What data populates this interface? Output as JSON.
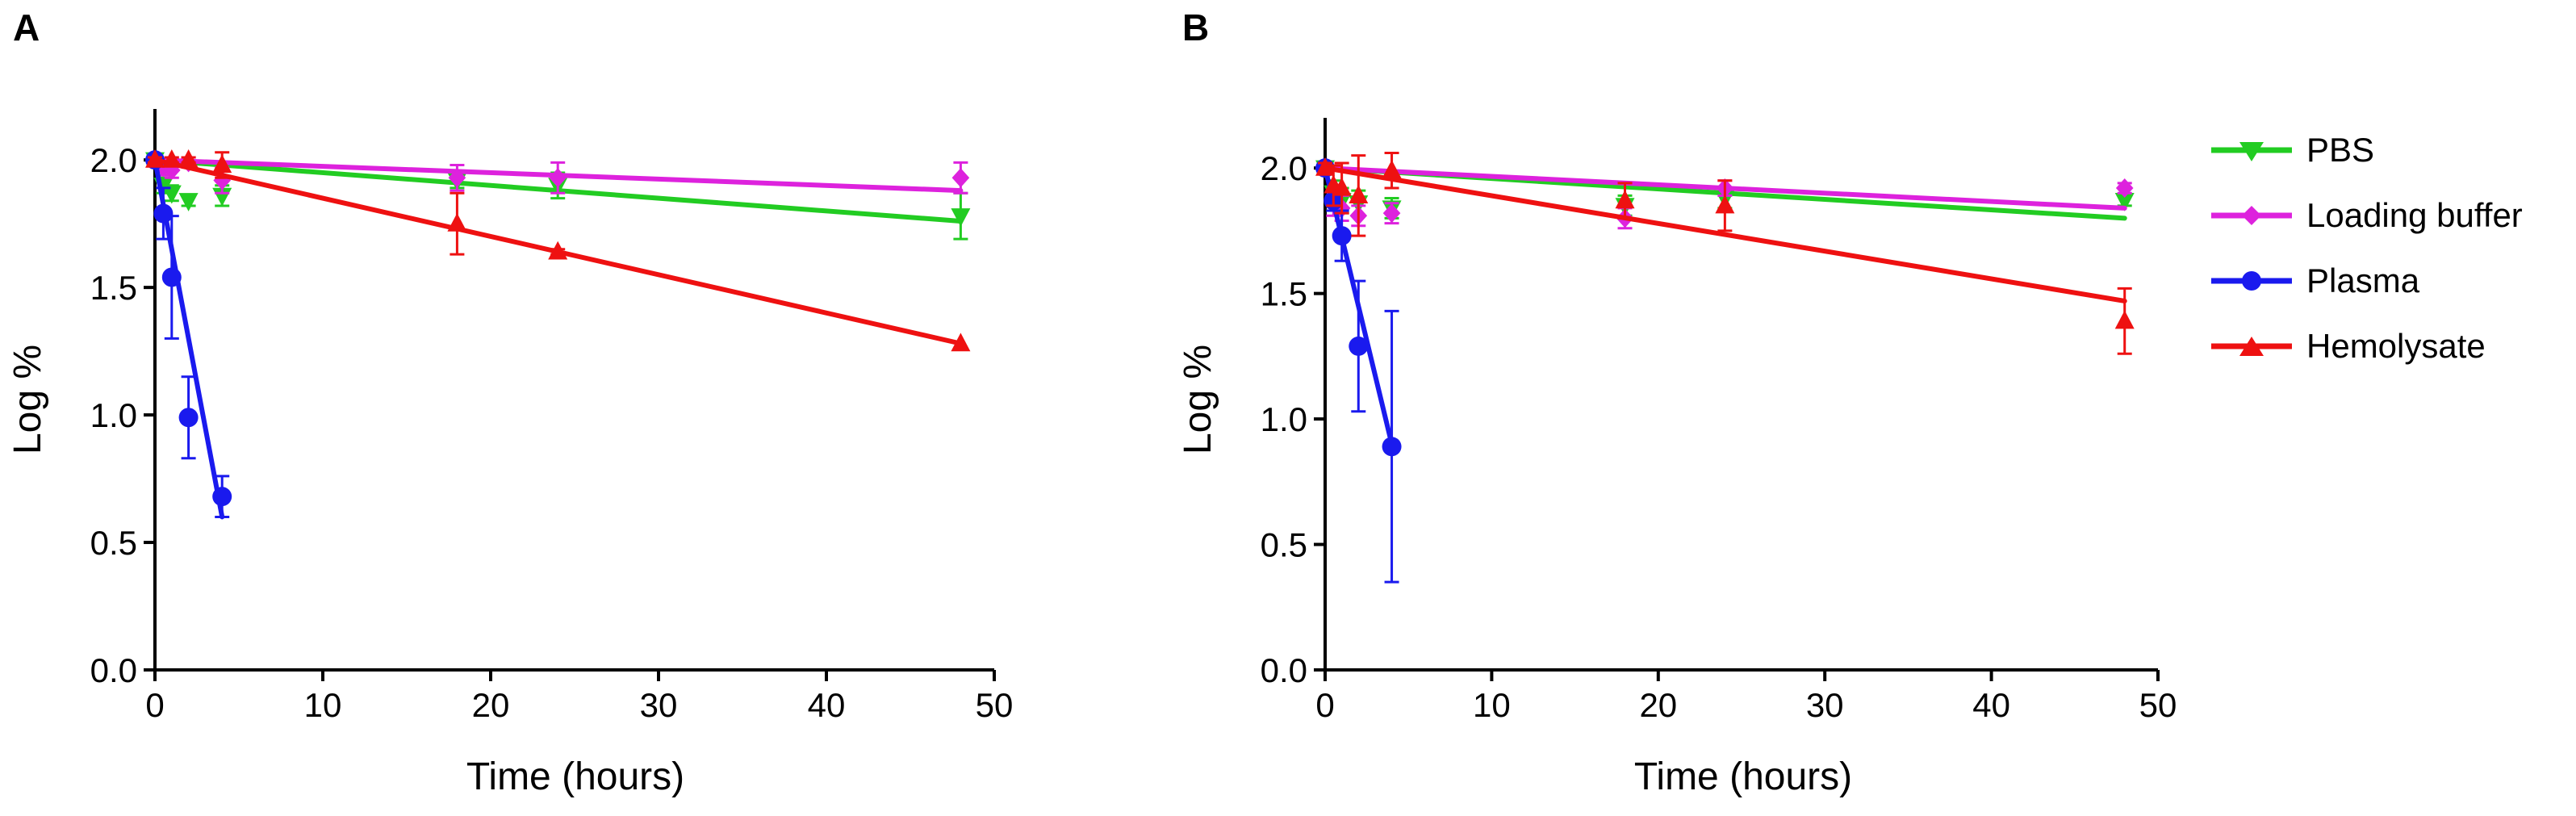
{
  "figure": {
    "panel_labels": [
      "A",
      "B"
    ]
  },
  "legend": {
    "entries": [
      {
        "label": "PBS",
        "color": "#22cc22",
        "marker": "triangle-down"
      },
      {
        "label": "Loading buffer",
        "color": "#dd22dd",
        "marker": "diamond"
      },
      {
        "label": "Plasma",
        "color": "#1a1aee",
        "marker": "circle"
      },
      {
        "label": "Hemolysate",
        "color": "#ee1111",
        "marker": "triangle-up"
      }
    ]
  },
  "chart_data": [
    {
      "panel": "A",
      "type": "scatter",
      "xlabel": "Time (hours)",
      "ylabel": "Log %",
      "xlim": [
        0,
        50
      ],
      "ylim": [
        0,
        2.2
      ],
      "xticks": [
        0,
        10,
        20,
        30,
        40,
        50
      ],
      "yticks": [
        0.0,
        0.5,
        1.0,
        1.5,
        2.0
      ],
      "xtick_labels": [
        "0",
        "10",
        "20",
        "30",
        "40",
        "50"
      ],
      "ytick_labels": [
        "0.0",
        "0.5",
        "1.0",
        "1.5",
        "2.0"
      ],
      "series": [
        {
          "name": "PBS",
          "color": "#22cc22",
          "marker": "triangle-down",
          "points": [
            {
              "x": 0,
              "y": 2.0,
              "err": 0.02
            },
            {
              "x": 0.5,
              "y": 1.9,
              "err": 0.03
            },
            {
              "x": 1,
              "y": 1.87,
              "err": 0.03
            },
            {
              "x": 2,
              "y": 1.84,
              "err": 0.02
            },
            {
              "x": 4,
              "y": 1.86,
              "err": 0.04
            },
            {
              "x": 18,
              "y": 1.92,
              "err": 0.03
            },
            {
              "x": 24,
              "y": 1.9,
              "err": 0.05
            },
            {
              "x": 48,
              "y": 1.78,
              "err": 0.09
            }
          ],
          "fit": {
            "x0": 0,
            "y0": 2.0,
            "x1": 48,
            "y1": 1.76
          }
        },
        {
          "name": "Loading buffer",
          "color": "#dd22dd",
          "marker": "diamond",
          "points": [
            {
              "x": 0,
              "y": 2.0,
              "err": 0.02
            },
            {
              "x": 0.5,
              "y": 1.97,
              "err": 0.03
            },
            {
              "x": 1,
              "y": 1.96,
              "err": 0.03
            },
            {
              "x": 2,
              "y": 1.99,
              "err": 0.02
            },
            {
              "x": 4,
              "y": 1.92,
              "err": 0.05
            },
            {
              "x": 18,
              "y": 1.93,
              "err": 0.05
            },
            {
              "x": 24,
              "y": 1.93,
              "err": 0.06
            },
            {
              "x": 48,
              "y": 1.93,
              "err": 0.06
            }
          ],
          "fit": {
            "x0": 0,
            "y0": 2.0,
            "x1": 48,
            "y1": 1.88
          }
        },
        {
          "name": "Plasma",
          "color": "#1a1aee",
          "marker": "circle",
          "points": [
            {
              "x": 0,
              "y": 2.0,
              "err": 0.0
            },
            {
              "x": 0.5,
              "y": 1.79,
              "err": 0.1
            },
            {
              "x": 1,
              "y": 1.54,
              "err": 0.24
            },
            {
              "x": 2,
              "y": 0.99,
              "err": 0.16
            },
            {
              "x": 4,
              "y": 0.68,
              "err": 0.08
            }
          ],
          "fit": {
            "x0": 0,
            "y0": 2.0,
            "x1": 4,
            "y1": 0.6
          }
        },
        {
          "name": "Hemolysate",
          "color": "#ee1111",
          "marker": "triangle-up",
          "points": [
            {
              "x": 0,
              "y": 2.0,
              "err": 0.01
            },
            {
              "x": 1,
              "y": 2.0,
              "err": 0.01
            },
            {
              "x": 2,
              "y": 2.0,
              "err": 0.01
            },
            {
              "x": 4,
              "y": 1.98,
              "err": 0.05
            },
            {
              "x": 18,
              "y": 1.75,
              "err": 0.12
            },
            {
              "x": 24,
              "y": 1.64,
              "err": 0.01
            },
            {
              "x": 48,
              "y": 1.28,
              "err": 0.0
            }
          ],
          "fit": {
            "x0": 0,
            "y0": 2.0,
            "x1": 48,
            "y1": 1.28
          }
        }
      ]
    },
    {
      "panel": "B",
      "type": "scatter",
      "xlabel": "Time (hours)",
      "ylabel": "Log %",
      "xlim": [
        0,
        50
      ],
      "ylim": [
        0,
        2.2
      ],
      "xticks": [
        0,
        10,
        20,
        30,
        40,
        50
      ],
      "yticks": [
        0.0,
        0.5,
        1.0,
        1.5,
        2.0
      ],
      "xtick_labels": [
        "0",
        "10",
        "20",
        "30",
        "40",
        "50"
      ],
      "ytick_labels": [
        "0.0",
        "0.5",
        "1.0",
        "1.5",
        "2.0"
      ],
      "series": [
        {
          "name": "PBS",
          "color": "#22cc22",
          "marker": "triangle-down",
          "points": [
            {
              "x": 0,
              "y": 2.0,
              "err": 0.02
            },
            {
              "x": 0.5,
              "y": 1.9,
              "err": 0.05
            },
            {
              "x": 1,
              "y": 1.87,
              "err": 0.05
            },
            {
              "x": 2,
              "y": 1.86,
              "err": 0.05
            },
            {
              "x": 4,
              "y": 1.84,
              "err": 0.04
            },
            {
              "x": 18,
              "y": 1.85,
              "err": 0.04
            },
            {
              "x": 24,
              "y": 1.88,
              "err": 0.04
            },
            {
              "x": 48,
              "y": 1.87,
              "err": 0.02
            }
          ],
          "fit": {
            "x0": 0,
            "y0": 2.0,
            "x1": 48,
            "y1": 1.8
          }
        },
        {
          "name": "Loading buffer",
          "color": "#dd22dd",
          "marker": "diamond",
          "points": [
            {
              "x": 0,
              "y": 2.0,
              "err": 0.02
            },
            {
              "x": 0.5,
              "y": 1.86,
              "err": 0.05
            },
            {
              "x": 1,
              "y": 1.84,
              "err": 0.05
            },
            {
              "x": 2,
              "y": 1.81,
              "err": 0.04
            },
            {
              "x": 4,
              "y": 1.82,
              "err": 0.04
            },
            {
              "x": 18,
              "y": 1.8,
              "err": 0.04
            },
            {
              "x": 24,
              "y": 1.92,
              "err": 0.03
            },
            {
              "x": 48,
              "y": 1.92,
              "err": 0.02
            }
          ],
          "fit": {
            "x0": 0,
            "y0": 2.0,
            "x1": 48,
            "y1": 1.84
          }
        },
        {
          "name": "Plasma",
          "color": "#1a1aee",
          "marker": "circle",
          "points": [
            {
              "x": 0,
              "y": 2.0,
              "err": 0.0
            },
            {
              "x": 0.5,
              "y": 1.87,
              "err": 0.04
            },
            {
              "x": 1,
              "y": 1.73,
              "err": 0.1
            },
            {
              "x": 2,
              "y": 1.29,
              "err": 0.26
            },
            {
              "x": 4,
              "y": 0.89,
              "err": 0.54
            }
          ],
          "fit": {
            "x0": 0,
            "y0": 2.0,
            "x1": 4,
            "y1": 0.9
          }
        },
        {
          "name": "Hemolysate",
          "color": "#ee1111",
          "marker": "triangle-up",
          "points": [
            {
              "x": 0,
              "y": 2.0,
              "err": 0.02
            },
            {
              "x": 0.5,
              "y": 1.93,
              "err": 0.08
            },
            {
              "x": 1,
              "y": 1.92,
              "err": 0.1
            },
            {
              "x": 2,
              "y": 1.89,
              "err": 0.16
            },
            {
              "x": 4,
              "y": 1.99,
              "err": 0.07
            },
            {
              "x": 18,
              "y": 1.87,
              "err": 0.07
            },
            {
              "x": 24,
              "y": 1.85,
              "err": 0.1
            },
            {
              "x": 48,
              "y": 1.39,
              "err": 0.13
            }
          ],
          "fit": {
            "x0": 0,
            "y0": 2.0,
            "x1": 48,
            "y1": 1.47
          }
        }
      ]
    }
  ]
}
